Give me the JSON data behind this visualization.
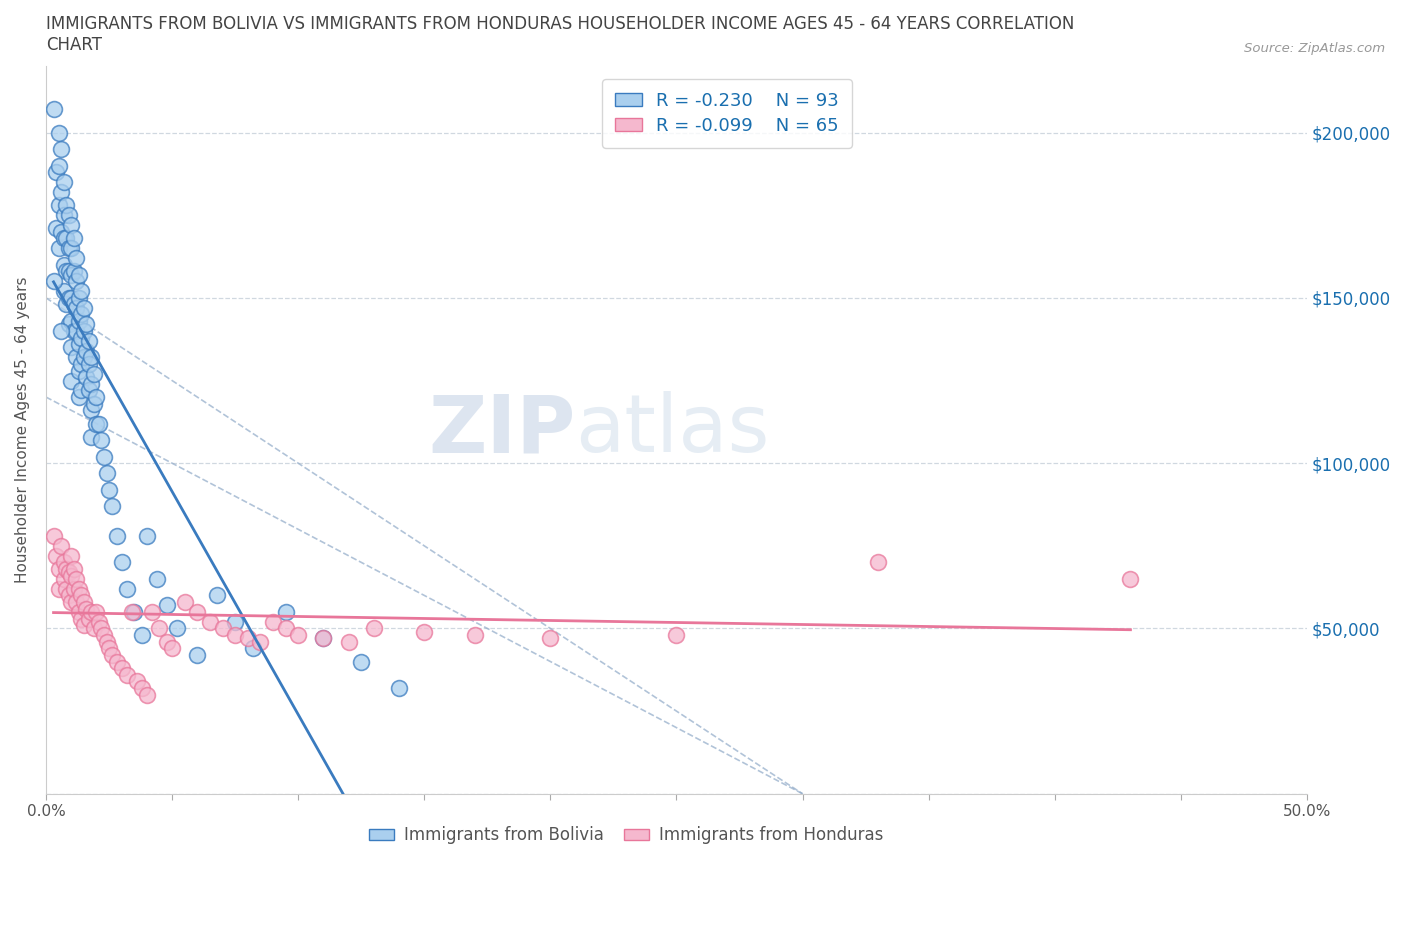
{
  "title": "IMMIGRANTS FROM BOLIVIA VS IMMIGRANTS FROM HONDURAS HOUSEHOLDER INCOME AGES 45 - 64 YEARS CORRELATION\nCHART",
  "source_text": "Source: ZipAtlas.com",
  "ylabel": "Householder Income Ages 45 - 64 years",
  "xlim": [
    0.0,
    0.5
  ],
  "ylim": [
    0,
    220000
  ],
  "yticks": [
    0,
    50000,
    100000,
    150000,
    200000
  ],
  "ytick_labels": [
    "",
    "$50,000",
    "$100,000",
    "$150,000",
    "$200,000"
  ],
  "xticks": [
    0.0,
    0.05,
    0.1,
    0.15,
    0.2,
    0.25,
    0.3,
    0.35,
    0.4,
    0.45,
    0.5
  ],
  "xtick_labels": [
    "0.0%",
    "",
    "",
    "",
    "",
    "",
    "",
    "",
    "",
    "",
    "50.0%"
  ],
  "bolivia_scatter_color": "#aacfee",
  "honduras_scatter_color": "#f5b8ce",
  "bolivia_line_color": "#3a7bbf",
  "honduras_line_color": "#e8769a",
  "R_bolivia": -0.23,
  "N_bolivia": 93,
  "R_honduras": -0.099,
  "N_honduras": 65,
  "legend_color": "#1a6faf",
  "watermark_zip": "ZIP",
  "watermark_atlas": "atlas",
  "grid_color": "#d0d8e0",
  "title_color": "#444444",
  "bolivia_x": [
    0.003,
    0.004,
    0.004,
    0.005,
    0.005,
    0.005,
    0.005,
    0.006,
    0.006,
    0.006,
    0.007,
    0.007,
    0.007,
    0.007,
    0.007,
    0.008,
    0.008,
    0.008,
    0.008,
    0.009,
    0.009,
    0.009,
    0.009,
    0.009,
    0.01,
    0.01,
    0.01,
    0.01,
    0.01,
    0.01,
    0.01,
    0.011,
    0.011,
    0.011,
    0.011,
    0.012,
    0.012,
    0.012,
    0.012,
    0.012,
    0.013,
    0.013,
    0.013,
    0.013,
    0.013,
    0.013,
    0.014,
    0.014,
    0.014,
    0.014,
    0.014,
    0.015,
    0.015,
    0.015,
    0.016,
    0.016,
    0.016,
    0.017,
    0.017,
    0.017,
    0.018,
    0.018,
    0.018,
    0.018,
    0.019,
    0.019,
    0.02,
    0.02,
    0.021,
    0.022,
    0.023,
    0.024,
    0.025,
    0.026,
    0.028,
    0.03,
    0.032,
    0.035,
    0.038,
    0.04,
    0.044,
    0.048,
    0.052,
    0.06,
    0.068,
    0.075,
    0.082,
    0.095,
    0.11,
    0.125,
    0.14,
    0.003,
    0.006
  ],
  "bolivia_y": [
    207000,
    188000,
    171000,
    200000,
    190000,
    178000,
    165000,
    195000,
    182000,
    170000,
    185000,
    175000,
    168000,
    160000,
    152000,
    178000,
    168000,
    158000,
    148000,
    175000,
    165000,
    158000,
    150000,
    142000,
    172000,
    165000,
    157000,
    150000,
    143000,
    135000,
    125000,
    168000,
    158000,
    148000,
    140000,
    162000,
    155000,
    147000,
    140000,
    132000,
    157000,
    150000,
    143000,
    136000,
    128000,
    120000,
    152000,
    145000,
    138000,
    130000,
    122000,
    147000,
    140000,
    132000,
    142000,
    134000,
    126000,
    137000,
    130000,
    122000,
    132000,
    124000,
    116000,
    108000,
    127000,
    118000,
    120000,
    112000,
    112000,
    107000,
    102000,
    97000,
    92000,
    87000,
    78000,
    70000,
    62000,
    55000,
    48000,
    78000,
    65000,
    57000,
    50000,
    42000,
    60000,
    52000,
    44000,
    55000,
    47000,
    40000,
    32000,
    155000,
    140000
  ],
  "honduras_x": [
    0.003,
    0.004,
    0.005,
    0.005,
    0.006,
    0.007,
    0.007,
    0.008,
    0.008,
    0.009,
    0.009,
    0.01,
    0.01,
    0.01,
    0.011,
    0.011,
    0.012,
    0.012,
    0.013,
    0.013,
    0.014,
    0.014,
    0.015,
    0.015,
    0.016,
    0.017,
    0.018,
    0.019,
    0.02,
    0.021,
    0.022,
    0.023,
    0.024,
    0.025,
    0.026,
    0.028,
    0.03,
    0.032,
    0.034,
    0.036,
    0.038,
    0.04,
    0.042,
    0.045,
    0.048,
    0.05,
    0.055,
    0.06,
    0.065,
    0.07,
    0.075,
    0.08,
    0.085,
    0.09,
    0.095,
    0.1,
    0.11,
    0.12,
    0.13,
    0.15,
    0.17,
    0.2,
    0.25,
    0.33,
    0.43
  ],
  "honduras_y": [
    78000,
    72000,
    68000,
    62000,
    75000,
    70000,
    65000,
    68000,
    62000,
    67000,
    60000,
    72000,
    66000,
    58000,
    68000,
    62000,
    65000,
    58000,
    62000,
    55000,
    60000,
    53000,
    58000,
    51000,
    56000,
    53000,
    55000,
    50000,
    55000,
    52000,
    50000,
    48000,
    46000,
    44000,
    42000,
    40000,
    38000,
    36000,
    55000,
    34000,
    32000,
    30000,
    55000,
    50000,
    46000,
    44000,
    58000,
    55000,
    52000,
    50000,
    48000,
    47000,
    46000,
    52000,
    50000,
    48000,
    47000,
    46000,
    50000,
    49000,
    48000,
    47000,
    48000,
    70000,
    65000
  ]
}
